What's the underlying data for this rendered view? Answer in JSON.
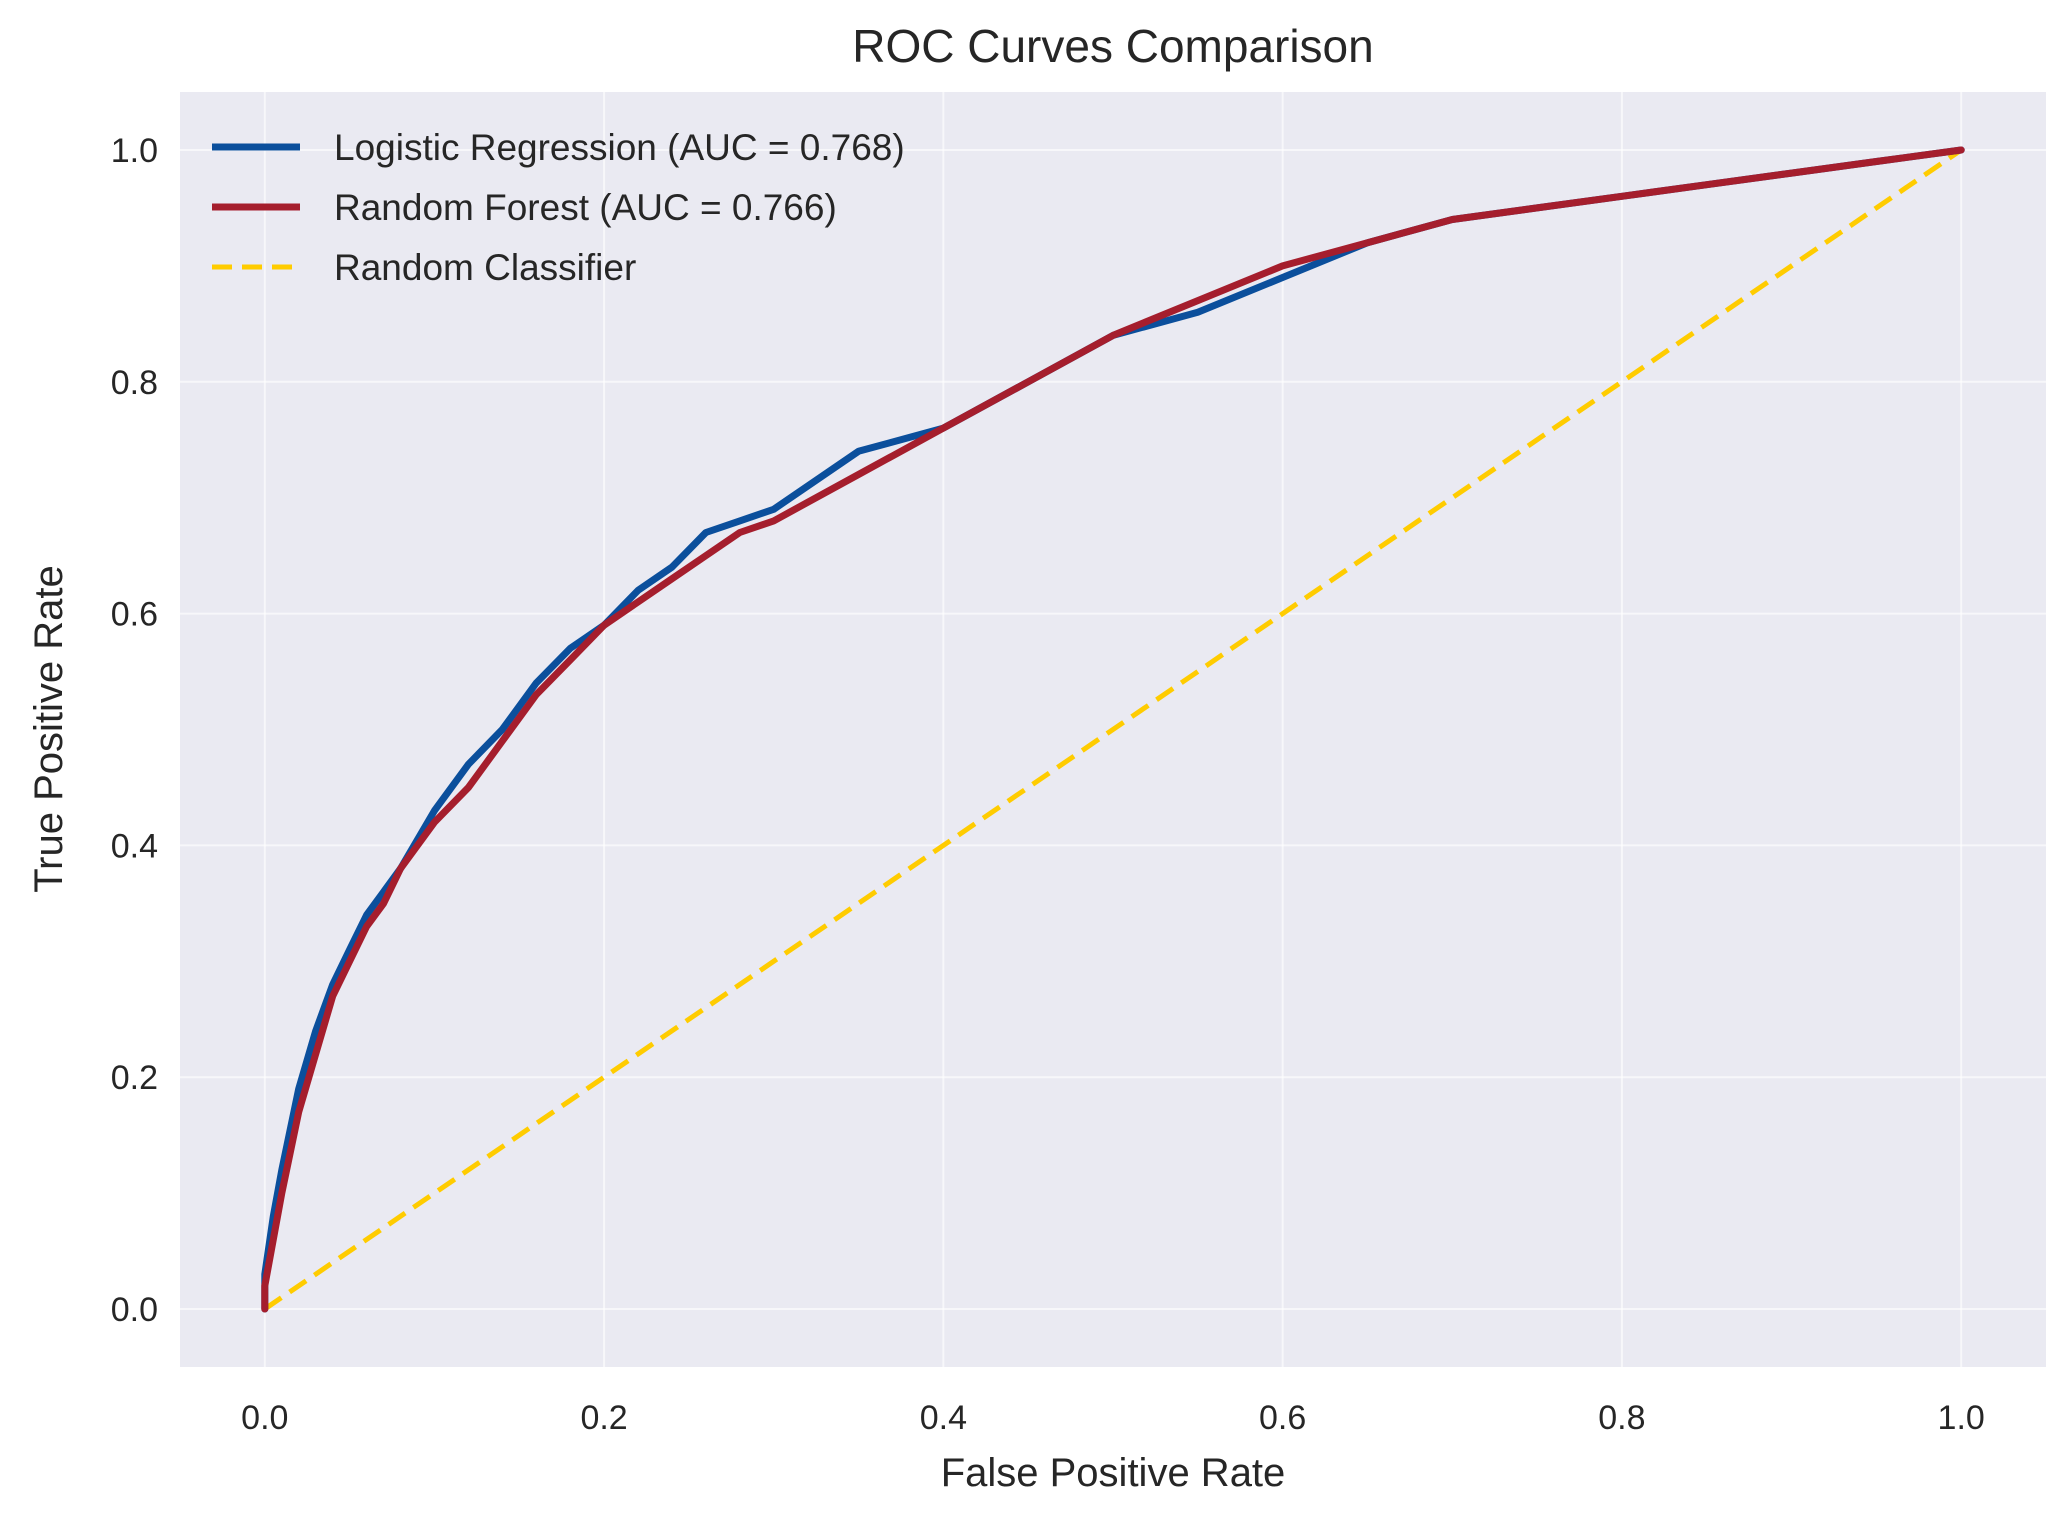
{
  "chart_data": {
    "type": "line",
    "title": "ROC Curves Comparison",
    "xlabel": "False Positive Rate",
    "ylabel": "True Positive Rate",
    "xlim": [
      -0.05,
      1.05
    ],
    "ylim": [
      -0.05,
      1.05
    ],
    "xticks": [
      0.0,
      0.2,
      0.4,
      0.6,
      0.8,
      1.0
    ],
    "xtick_labels": [
      "0.0",
      "0.2",
      "0.4",
      "0.6",
      "0.8",
      "1.0"
    ],
    "yticks": [
      0.0,
      0.2,
      0.4,
      0.6,
      0.8,
      1.0
    ],
    "ytick_labels": [
      "0.0",
      "0.2",
      "0.4",
      "0.6",
      "0.8",
      "1.0"
    ],
    "grid": true,
    "legend_position": "top-left",
    "background_color": "#eaeaf2",
    "series": [
      {
        "name": "Logistic Regression (AUC = 0.768)",
        "color": "#0b4f9c",
        "style": "solid",
        "x": [
          0.0,
          0.0,
          0.005,
          0.01,
          0.02,
          0.03,
          0.04,
          0.05,
          0.06,
          0.07,
          0.08,
          0.1,
          0.12,
          0.14,
          0.16,
          0.18,
          0.2,
          0.22,
          0.24,
          0.26,
          0.28,
          0.3,
          0.35,
          0.4,
          0.45,
          0.5,
          0.55,
          0.6,
          0.65,
          0.7,
          0.75,
          0.8,
          0.85,
          0.9,
          0.95,
          1.0
        ],
        "y": [
          0.0,
          0.03,
          0.08,
          0.12,
          0.19,
          0.24,
          0.28,
          0.31,
          0.34,
          0.36,
          0.38,
          0.43,
          0.47,
          0.5,
          0.54,
          0.57,
          0.59,
          0.62,
          0.64,
          0.67,
          0.68,
          0.69,
          0.74,
          0.76,
          0.8,
          0.84,
          0.86,
          0.89,
          0.92,
          0.94,
          0.95,
          0.96,
          0.97,
          0.98,
          0.99,
          1.0
        ]
      },
      {
        "name": "Random Forest (AUC = 0.766)",
        "color": "#a51e2d",
        "style": "solid",
        "x": [
          0.0,
          0.0,
          0.005,
          0.01,
          0.02,
          0.03,
          0.04,
          0.05,
          0.06,
          0.07,
          0.08,
          0.1,
          0.12,
          0.14,
          0.16,
          0.18,
          0.2,
          0.22,
          0.24,
          0.26,
          0.28,
          0.3,
          0.35,
          0.4,
          0.45,
          0.5,
          0.55,
          0.6,
          0.65,
          0.7,
          0.75,
          0.8,
          0.85,
          0.9,
          0.95,
          1.0
        ],
        "y": [
          0.0,
          0.02,
          0.06,
          0.1,
          0.17,
          0.22,
          0.27,
          0.3,
          0.33,
          0.35,
          0.38,
          0.42,
          0.45,
          0.49,
          0.53,
          0.56,
          0.59,
          0.61,
          0.63,
          0.65,
          0.67,
          0.68,
          0.72,
          0.76,
          0.8,
          0.84,
          0.87,
          0.9,
          0.92,
          0.94,
          0.95,
          0.96,
          0.97,
          0.98,
          0.99,
          1.0
        ]
      },
      {
        "name": "Random Classifier",
        "color": "#ffcc00",
        "style": "dashed",
        "x": [
          0.0,
          1.0
        ],
        "y": [
          0.0,
          1.0
        ]
      }
    ]
  }
}
